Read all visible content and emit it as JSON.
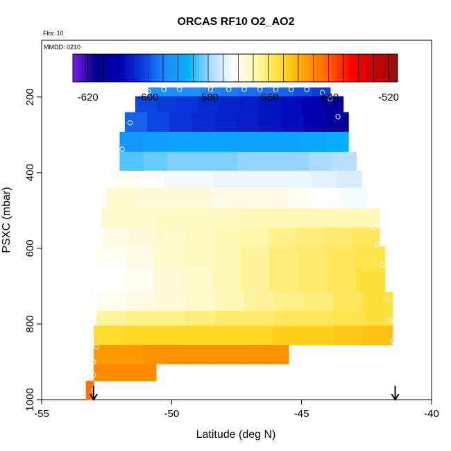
{
  "chart_data": {
    "type": "heatmap",
    "title": "ORCAS RF10 O2_AO2",
    "annotations": {
      "flights": "Flts: 10",
      "date": "MMDD: 0210"
    },
    "xlabel": "Latitude (deg N)",
    "ylabel": "PSXC (mbar)",
    "xlim": [
      -55,
      -40
    ],
    "ylim": [
      1000,
      50
    ],
    "y_reversed": true,
    "x_ticks": [
      -55,
      -50,
      -45,
      -40
    ],
    "y_ticks": [
      200,
      400,
      600,
      800,
      1000
    ],
    "colorbar": {
      "range": [
        -625,
        -517
      ],
      "ticks": [
        -620,
        -600,
        -580,
        -560,
        -540,
        -520
      ],
      "colors": [
        "#7a1fe6",
        "#00008c",
        "#0000b4",
        "#0a3cdc",
        "#1e8cff",
        "#00b4ff",
        "#b4dcff",
        "#ffffff",
        "#fff5a0",
        "#ffdc28",
        "#ffa000",
        "#ff6400",
        "#ff0000",
        "#c80000",
        "#8c1414"
      ]
    },
    "rows": [
      {
        "p_top": 175,
        "p_bot": 198,
        "lat_min": -50.9,
        "lat_max": -43.9,
        "values": [
          -593,
          -594,
          -594,
          -595,
          -596,
          -597,
          -597,
          -598,
          -600,
          -602
        ]
      },
      {
        "p_top": 198,
        "p_bot": 240,
        "lat_min": -51.4,
        "lat_max": -43.4,
        "values": [
          -601,
          -602,
          -603,
          -604,
          -605,
          -606,
          -607,
          -608,
          -610,
          -615
        ]
      },
      {
        "p_top": 240,
        "p_bot": 292,
        "lat_min": -51.8,
        "lat_max": -43.2,
        "values": [
          -598,
          -601,
          -603,
          -604,
          -605,
          -606,
          -607,
          -608,
          -611,
          -615
        ]
      },
      {
        "p_top": 292,
        "p_bot": 345,
        "lat_min": -52.0,
        "lat_max": -43.2,
        "values": [
          -592,
          -591,
          -590,
          -590,
          -590,
          -590,
          -590,
          -590,
          -589,
          -588
        ]
      },
      {
        "p_top": 345,
        "p_bot": 395,
        "lat_min": -52.0,
        "lat_max": -42.9,
        "values": [
          -583,
          -582,
          -581,
          -581,
          -581,
          -580,
          -580,
          -580,
          -579,
          -578
        ]
      },
      {
        "p_top": 395,
        "p_bot": 440,
        "lat_min": -52.2,
        "lat_max": -42.7,
        "values": [
          -570,
          -571,
          -572,
          -572,
          -573,
          -573,
          -573,
          -573,
          -574,
          -575
        ]
      },
      {
        "p_top": 440,
        "p_bot": 495,
        "lat_min": -52.5,
        "lat_max": -42.5,
        "values": [
          -567,
          -568,
          -568,
          -568,
          -569,
          -569,
          -569,
          -570,
          -571,
          -572
        ]
      },
      {
        "p_top": 495,
        "p_bot": 545,
        "lat_min": -52.7,
        "lat_max": -42.0,
        "values": [
          -567,
          -567,
          -566,
          -566,
          -566,
          -565,
          -565,
          -565,
          -565,
          -565
        ]
      },
      {
        "p_top": 545,
        "p_bot": 595,
        "lat_min": -52.7,
        "lat_max": -42.0,
        "values": [
          -569,
          -568,
          -567,
          -566,
          -565,
          -564,
          -562,
          -561,
          -560,
          -559
        ]
      },
      {
        "p_top": 595,
        "p_bot": 650,
        "lat_min": -52.9,
        "lat_max": -41.8,
        "values": [
          -570,
          -569,
          -567,
          -566,
          -565,
          -563,
          -561,
          -560,
          -559,
          -558
        ]
      },
      {
        "p_top": 650,
        "p_bot": 715,
        "lat_min": -52.9,
        "lat_max": -41.8,
        "values": [
          -571,
          -570,
          -568,
          -567,
          -565,
          -563,
          -561,
          -560,
          -559,
          -557
        ]
      },
      {
        "p_top": 715,
        "p_bot": 765,
        "lat_min": -52.9,
        "lat_max": -41.5,
        "values": [
          -570,
          -569,
          -568,
          -567,
          -565,
          -563,
          -562,
          -561,
          -559,
          -557
        ]
      },
      {
        "p_top": 765,
        "p_bot": 805,
        "lat_min": -52.9,
        "lat_max": -41.5,
        "values": [
          -563,
          -562,
          -562,
          -561,
          -560,
          -560,
          -559,
          -559,
          -558,
          -557
        ]
      },
      {
        "p_top": 805,
        "p_bot": 855,
        "lat_min": -53.0,
        "lat_max": -41.5,
        "values": [
          -556,
          -555,
          -555,
          -555,
          -555,
          -555,
          -554,
          -554,
          -553,
          -552
        ]
      },
      {
        "p_top": 855,
        "p_bot": 905,
        "lat_min": -53.0,
        "lat_max": -45.5,
        "values": [
          -547,
          -547,
          -546,
          -546,
          -546,
          -546,
          -546,
          -546
        ]
      },
      {
        "p_top": 905,
        "p_bot": 950,
        "lat_min": -53.0,
        "lat_max": -50.6,
        "values": [
          -545,
          -545,
          -545
        ]
      },
      {
        "p_top": 950,
        "p_bot": 1000,
        "lat_min": -53.3,
        "lat_max": -53.0,
        "values": [
          -542
        ]
      }
    ],
    "sample_points": [
      [
        -50.9,
        185
      ],
      [
        -50.3,
        180
      ],
      [
        -49.7,
        180
      ],
      [
        -48.5,
        180
      ],
      [
        -47.8,
        180
      ],
      [
        -47.2,
        180
      ],
      [
        -46.6,
        180
      ],
      [
        -46.0,
        180
      ],
      [
        -45.4,
        180
      ],
      [
        -44.8,
        180
      ],
      [
        -44.2,
        188
      ],
      [
        -43.9,
        205
      ],
      [
        -43.6,
        252
      ],
      [
        -51.6,
        268
      ],
      [
        -51.9,
        338
      ],
      [
        -52.1,
        388
      ],
      [
        -52.6,
        582
      ],
      [
        -52.7,
        650
      ],
      [
        -52.8,
        720
      ],
      [
        -52.8,
        775
      ],
      [
        -52.9,
        860
      ],
      [
        -53.0,
        900
      ],
      [
        -53.0,
        935
      ],
      [
        -53.0,
        975
      ],
      [
        -42.2,
        545
      ],
      [
        -42.1,
        590
      ],
      [
        -41.9,
        645
      ],
      [
        -41.7,
        735
      ],
      [
        -41.6,
        790
      ],
      [
        -41.5,
        845
      ]
    ],
    "markers": [
      {
        "lat": -53.0,
        "symbol": "down-arrow"
      },
      {
        "lat": -41.4,
        "symbol": "down-arrow"
      }
    ]
  }
}
